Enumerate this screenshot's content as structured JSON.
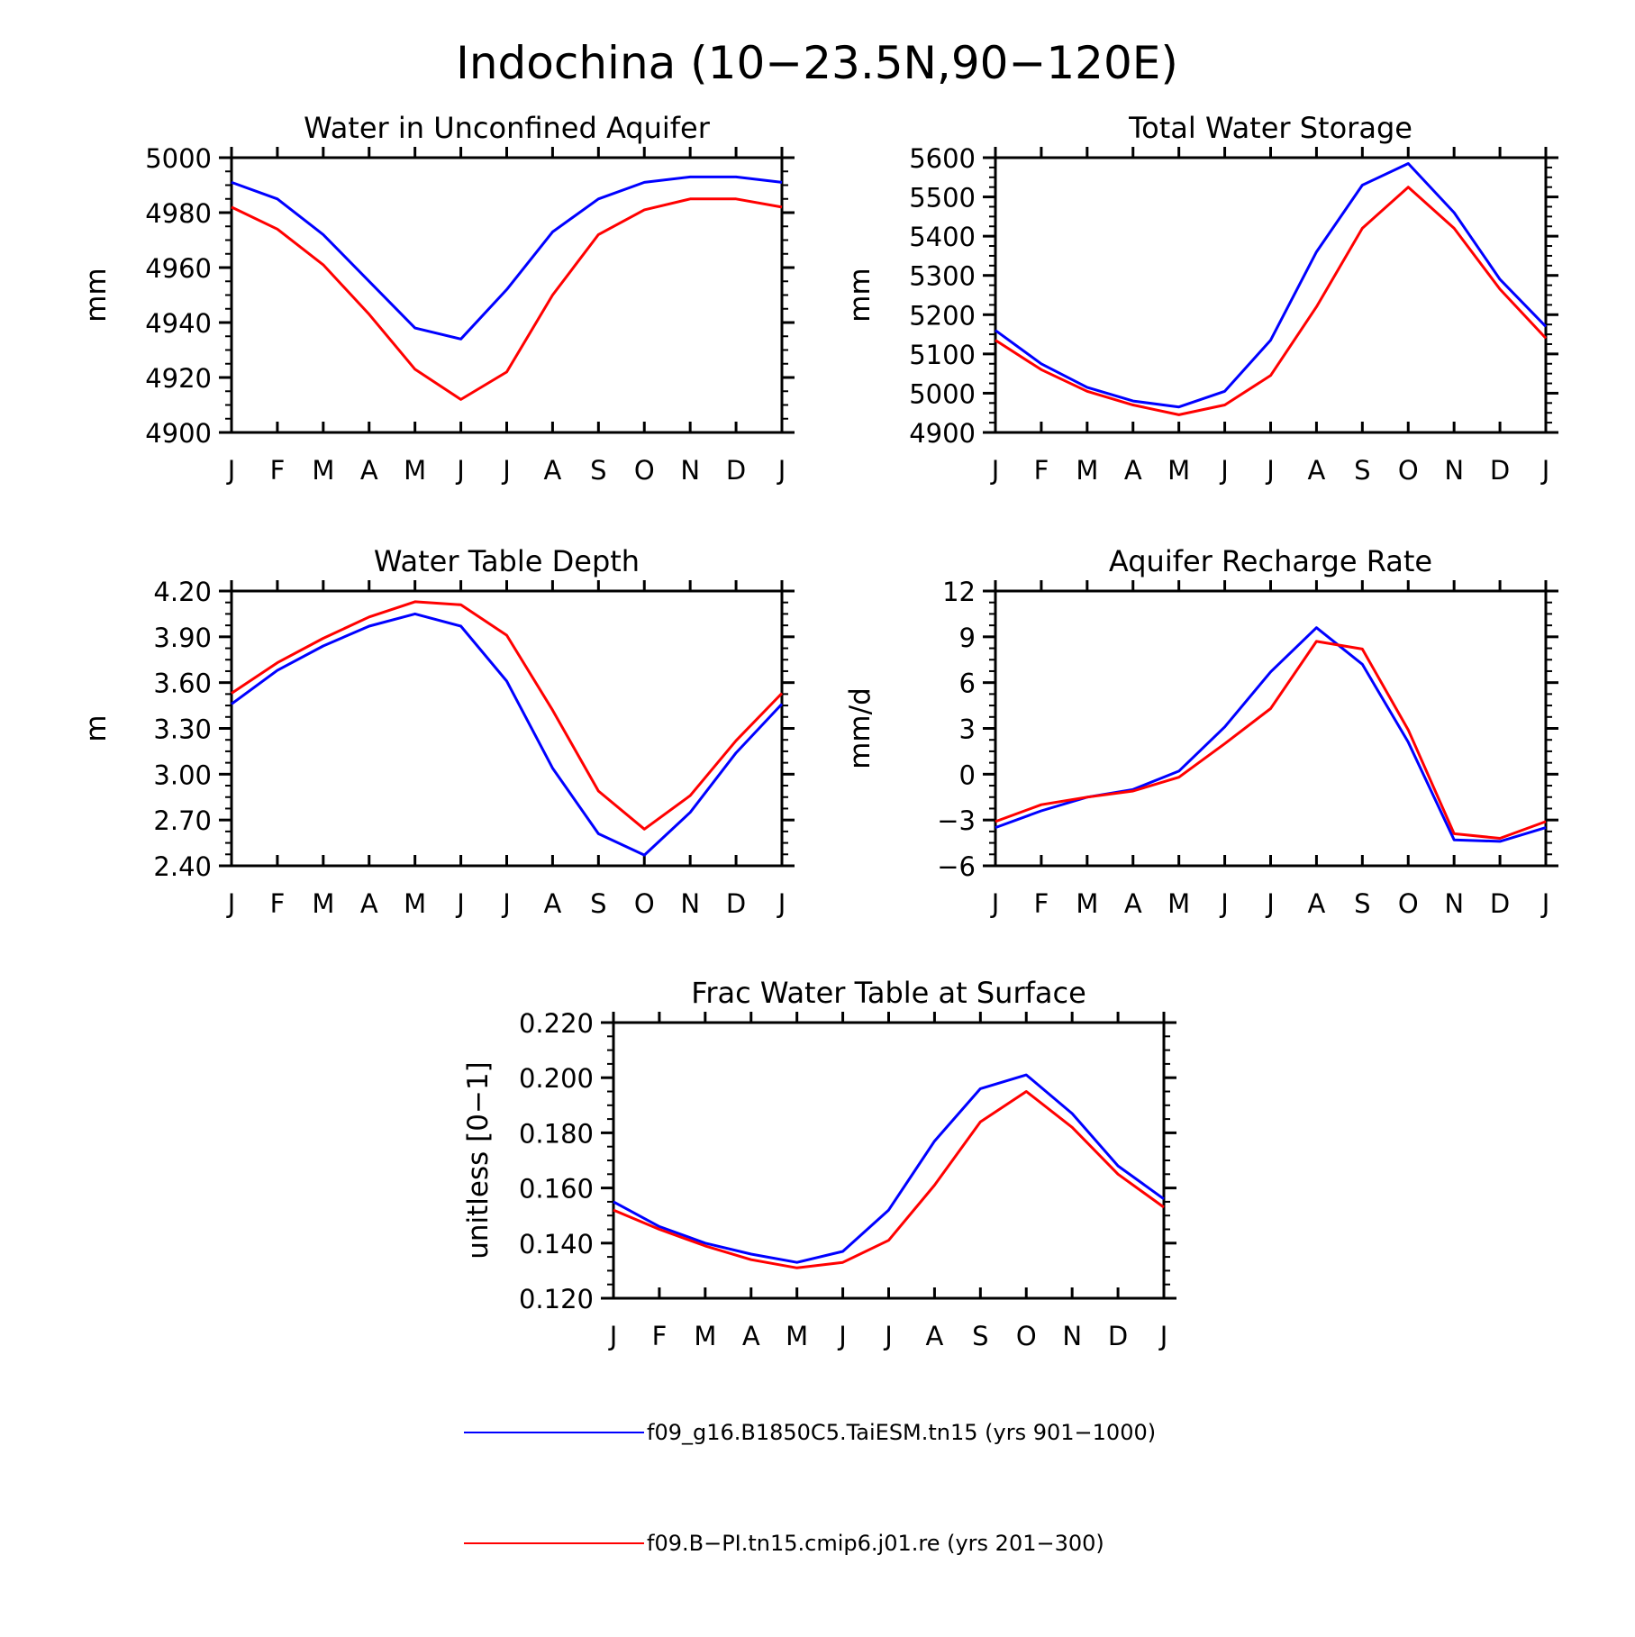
{
  "figure": {
    "title": "Indochina (10−23.5N,90−120E)"
  },
  "colors": {
    "series_a": "#0000ff",
    "series_b": "#ff0000",
    "axes": "#000000"
  },
  "legend": {
    "items": [
      {
        "label": "f09_g16.B1850C5.TaiESM.tn15 (yrs 901−1000)",
        "color": "#0000ff"
      },
      {
        "label": "f09.B−PI.tn15.cmip6.j01.re (yrs 201−300)",
        "color": "#ff0000"
      }
    ]
  },
  "chart_data": [
    {
      "type": "line",
      "title": "Water in Unconfined Aquifer",
      "xlabel": "",
      "ylabel": "mm",
      "categories": [
        "J",
        "F",
        "M",
        "A",
        "M",
        "J",
        "J",
        "A",
        "S",
        "O",
        "N",
        "D",
        "J"
      ],
      "ylim": [
        4900,
        5000
      ],
      "yticks": [
        "4900",
        "4920",
        "4940",
        "4960",
        "4980",
        "5000"
      ],
      "series": [
        {
          "color": "#0000ff",
          "values": [
            4991,
            4985,
            4972,
            4955,
            4938,
            4934,
            4952,
            4973,
            4985,
            4991,
            4993,
            4993,
            4991
          ]
        },
        {
          "color": "#ff0000",
          "values": [
            4982,
            4974,
            4961,
            4943,
            4923,
            4912,
            4922,
            4950,
            4972,
            4981,
            4985,
            4985,
            4982
          ]
        }
      ]
    },
    {
      "type": "line",
      "title": "Total Water Storage",
      "xlabel": "",
      "ylabel": "mm",
      "categories": [
        "J",
        "F",
        "M",
        "A",
        "M",
        "J",
        "J",
        "A",
        "S",
        "O",
        "N",
        "D",
        "J"
      ],
      "ylim": [
        4900,
        5600
      ],
      "yticks": [
        "4900",
        "5000",
        "5100",
        "5200",
        "5300",
        "5400",
        "5500",
        "5600"
      ],
      "series": [
        {
          "color": "#0000ff",
          "values": [
            5160,
            5075,
            5015,
            4980,
            4965,
            5005,
            5135,
            5360,
            5530,
            5585,
            5460,
            5290,
            5170
          ]
        },
        {
          "color": "#ff0000",
          "values": [
            5135,
            5060,
            5005,
            4970,
            4945,
            4970,
            5045,
            5220,
            5420,
            5525,
            5420,
            5265,
            5140
          ]
        }
      ]
    },
    {
      "type": "line",
      "title": "Water Table Depth",
      "xlabel": "",
      "ylabel": "m",
      "categories": [
        "J",
        "F",
        "M",
        "A",
        "M",
        "J",
        "J",
        "A",
        "S",
        "O",
        "N",
        "D",
        "J"
      ],
      "ylim": [
        2.4,
        4.2
      ],
      "yticks": [
        "2.40",
        "2.70",
        "3.00",
        "3.30",
        "3.60",
        "3.90",
        "4.20"
      ],
      "series": [
        {
          "color": "#0000ff",
          "values": [
            3.46,
            3.68,
            3.84,
            3.97,
            4.05,
            3.97,
            3.61,
            3.04,
            2.61,
            2.47,
            2.75,
            3.14,
            3.46
          ]
        },
        {
          "color": "#ff0000",
          "values": [
            3.53,
            3.73,
            3.89,
            4.03,
            4.13,
            4.11,
            3.91,
            3.42,
            2.89,
            2.64,
            2.86,
            3.22,
            3.53
          ]
        }
      ]
    },
    {
      "type": "line",
      "title": "Aquifer Recharge Rate",
      "xlabel": "",
      "ylabel": "mm/d",
      "categories": [
        "J",
        "F",
        "M",
        "A",
        "M",
        "J",
        "J",
        "A",
        "S",
        "O",
        "N",
        "D",
        "J"
      ],
      "ylim": [
        -6,
        12
      ],
      "yticks": [
        "−6",
        "−3",
        "0",
        "3",
        "6",
        "9",
        "12"
      ],
      "series": [
        {
          "color": "#0000ff",
          "values": [
            -3.5,
            -2.4,
            -1.5,
            -1.0,
            0.2,
            3.1,
            6.7,
            9.6,
            7.2,
            2.1,
            -4.3,
            -4.4,
            -3.5
          ]
        },
        {
          "color": "#ff0000",
          "values": [
            -3.1,
            -2.0,
            -1.5,
            -1.1,
            -0.2,
            2.0,
            4.3,
            8.7,
            8.2,
            2.9,
            -3.9,
            -4.2,
            -3.1
          ]
        }
      ]
    },
    {
      "type": "line",
      "title": "Frac Water Table at Surface",
      "xlabel": "",
      "ylabel": "unitless [0−1]",
      "categories": [
        "J",
        "F",
        "M",
        "A",
        "M",
        "J",
        "J",
        "A",
        "S",
        "O",
        "N",
        "D",
        "J"
      ],
      "ylim": [
        0.12,
        0.22
      ],
      "yticks": [
        "0.120",
        "0.140",
        "0.160",
        "0.180",
        "0.200",
        "0.220"
      ],
      "series": [
        {
          "color": "#0000ff",
          "values": [
            0.155,
            0.146,
            0.14,
            0.136,
            0.133,
            0.137,
            0.152,
            0.177,
            0.196,
            0.201,
            0.187,
            0.168,
            0.156
          ]
        },
        {
          "color": "#ff0000",
          "values": [
            0.152,
            0.145,
            0.139,
            0.134,
            0.131,
            0.133,
            0.141,
            0.161,
            0.184,
            0.195,
            0.182,
            0.165,
            0.153
          ]
        }
      ]
    }
  ]
}
